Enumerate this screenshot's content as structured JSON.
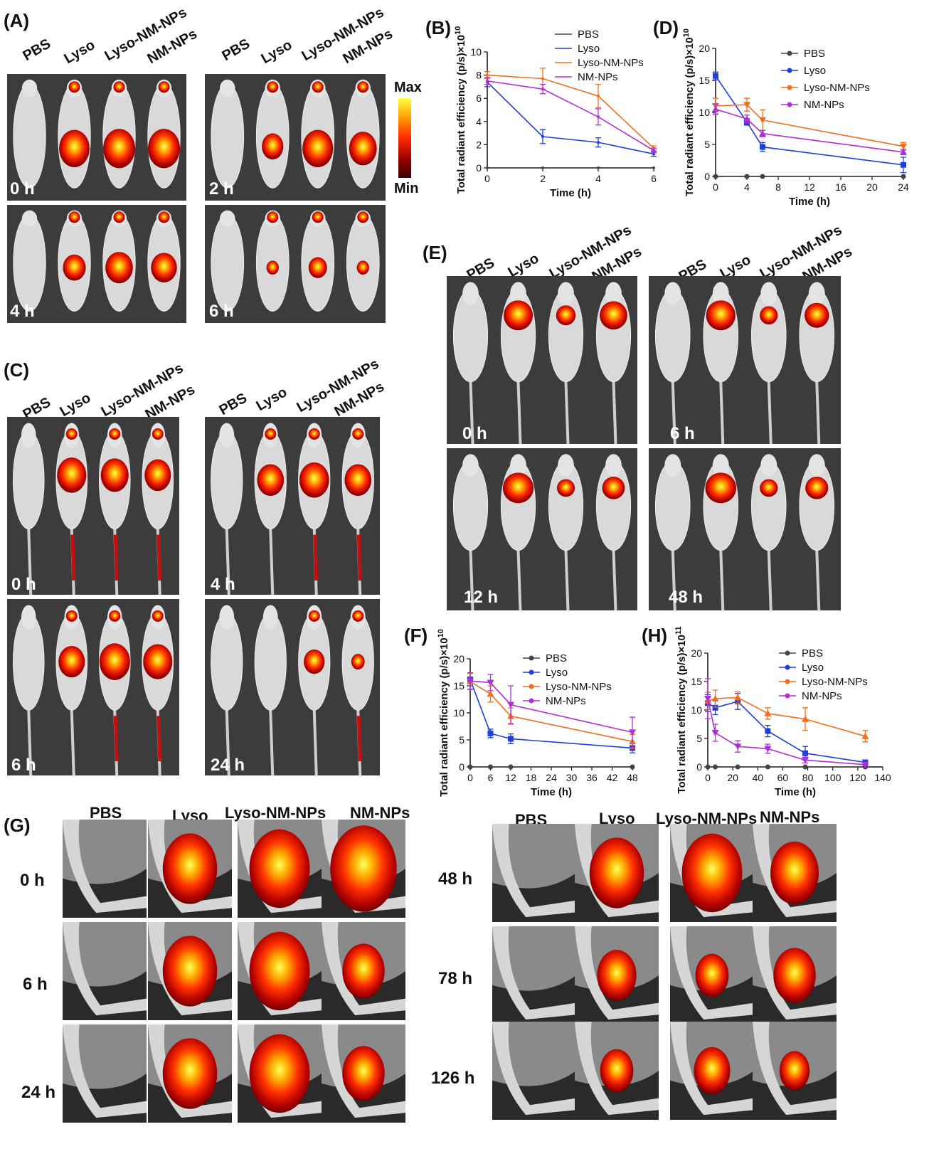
{
  "groups": [
    "PBS",
    "Lyso",
    "Lyso-NM-NPs",
    "NM-NPs"
  ],
  "panels": {
    "A": {
      "label": "(A)",
      "times": [
        "0 h",
        "2 h",
        "4 h",
        "6 h"
      ]
    },
    "C": {
      "label": "(C)",
      "times": [
        "0 h",
        "4 h",
        "6 h",
        "24 h"
      ]
    },
    "E": {
      "label": "(E)",
      "times": [
        "0 h",
        "6 h",
        "12 h",
        "48 h"
      ]
    },
    "G": {
      "label": "(G)",
      "times_left": [
        "0 h",
        "6 h",
        "24 h"
      ],
      "times_right": [
        "48 h",
        "78 h",
        "126 h"
      ]
    }
  },
  "colorbar": {
    "max": "Max",
    "min": "Min"
  },
  "colors": {
    "PBS": "#444444",
    "Lyso": "#1f3fd8",
    "Lyso-NM-NPs": "#f07020",
    "NM-NPs": "#b030d8"
  },
  "chart_data": [
    {
      "id": "B",
      "panel_label": "(B)",
      "type": "line",
      "xlabel": "Time (h)",
      "ylabel": "Total radiant efficiency (p/s)×10",
      "exponent": "10",
      "x": [
        0,
        2,
        4,
        6
      ],
      "xlim": [
        0,
        6
      ],
      "ylim": [
        0,
        10
      ],
      "xticks": [
        0,
        2,
        4,
        6
      ],
      "yticks": [
        0,
        2,
        4,
        6,
        8,
        10
      ],
      "legend": "top-right",
      "series": [
        {
          "name": "PBS",
          "values": [
            0,
            0,
            0,
            0
          ],
          "err": [
            0,
            0,
            0,
            0
          ],
          "marker": "none"
        },
        {
          "name": "Lyso",
          "values": [
            7.4,
            2.7,
            2.2,
            1.2
          ],
          "err": [
            0.4,
            0.6,
            0.4,
            0.2
          ],
          "marker": "none"
        },
        {
          "name": "Lyso-NM-NPs",
          "values": [
            8.0,
            7.7,
            6.2,
            1.7
          ],
          "err": [
            0.3,
            0.9,
            1.0,
            0.2
          ],
          "marker": "none"
        },
        {
          "name": "NM-NPs",
          "values": [
            7.5,
            6.8,
            4.4,
            1.5
          ],
          "err": [
            0.3,
            0.4,
            0.7,
            0.2
          ],
          "marker": "none"
        }
      ]
    },
    {
      "id": "D",
      "panel_label": "(D)",
      "type": "line",
      "xlabel": "Time (h)",
      "ylabel": "Total radiant efficiency (p/s)×10",
      "exponent": "10",
      "x": [
        0,
        4,
        6,
        24
      ],
      "xlim": [
        0,
        24
      ],
      "ylim": [
        0,
        20
      ],
      "xticks": [
        0,
        4,
        8,
        12,
        16,
        20,
        24
      ],
      "yticks": [
        0,
        5,
        10,
        15,
        20
      ],
      "legend": "top-right",
      "series": [
        {
          "name": "PBS",
          "values": [
            0,
            0,
            0,
            0
          ],
          "err": [
            0,
            0,
            0,
            0
          ],
          "marker": "circle"
        },
        {
          "name": "Lyso",
          "values": [
            15.7,
            8.5,
            4.6,
            1.8
          ],
          "err": [
            0.6,
            0.5,
            0.7,
            1.2
          ],
          "marker": "square"
        },
        {
          "name": "Lyso-NM-NPs",
          "values": [
            11.0,
            11.2,
            8.8,
            4.7
          ],
          "err": [
            1.2,
            1.0,
            1.6,
            0.6
          ],
          "marker": "tri-down"
        },
        {
          "name": "NM-NPs",
          "values": [
            10.5,
            9.0,
            6.7,
            3.8
          ],
          "err": [
            0.8,
            0.6,
            0.5,
            0.4
          ],
          "marker": "tri-up"
        }
      ]
    },
    {
      "id": "F",
      "panel_label": "(F)",
      "type": "line",
      "xlabel": "Time (h)",
      "ylabel": "Total radiant efficiency (p/s)×10",
      "exponent": "10",
      "x": [
        0,
        6,
        12,
        48
      ],
      "xlim": [
        0,
        48
      ],
      "ylim": [
        0,
        20
      ],
      "xticks": [
        0,
        6,
        12,
        18,
        24,
        30,
        36,
        42,
        48
      ],
      "yticks": [
        0,
        5,
        10,
        15,
        20
      ],
      "legend": "top-right",
      "series": [
        {
          "name": "PBS",
          "values": [
            0,
            0,
            0,
            0
          ],
          "err": [
            0,
            0,
            0,
            0
          ],
          "marker": "circle"
        },
        {
          "name": "Lyso",
          "values": [
            16.2,
            6.2,
            5.2,
            3.5
          ],
          "err": [
            1.2,
            0.8,
            0.9,
            0.9
          ],
          "marker": "square"
        },
        {
          "name": "Lyso-NM-NPs",
          "values": [
            15.8,
            13.5,
            9.4,
            4.7
          ],
          "err": [
            1.5,
            1.5,
            1.5,
            1.3
          ],
          "marker": "tri-up"
        },
        {
          "name": "NM-NPs",
          "values": [
            15.9,
            15.6,
            11.5,
            6.4
          ],
          "err": [
            1.5,
            1.5,
            3.5,
            2.8
          ],
          "marker": "tri-down"
        }
      ]
    },
    {
      "id": "H",
      "panel_label": "(H)",
      "type": "line",
      "xlabel": "Time (h)",
      "ylabel": "Total radiant efficiency (p/s)×10",
      "exponent": "11",
      "xlim": [
        0,
        140
      ],
      "ylim": [
        0,
        20
      ],
      "xticks": [
        0,
        20,
        40,
        60,
        80,
        100,
        120,
        140
      ],
      "yticks": [
        0,
        5,
        10,
        15,
        20
      ],
      "legend": "top-right",
      "series": [
        {
          "name": "PBS",
          "x": [
            0,
            6,
            24,
            48,
            78,
            126
          ],
          "values": [
            0,
            0,
            0,
            0,
            0,
            0
          ],
          "err": [
            0,
            0,
            0,
            0,
            0,
            0
          ],
          "marker": "circle"
        },
        {
          "name": "Lyso",
          "x": [
            0,
            6,
            24,
            48,
            78,
            126
          ],
          "values": [
            11.2,
            10.4,
            11.5,
            6.3,
            2.4,
            0.8
          ],
          "err": [
            1.5,
            1.2,
            1.4,
            1.0,
            1.2,
            0.4
          ],
          "marker": "square"
        },
        {
          "name": "Lyso-NM-NPs",
          "x": [
            0,
            6,
            24,
            48,
            78,
            126
          ],
          "values": [
            11.6,
            12.0,
            12.2,
            9.4,
            8.4,
            5.4
          ],
          "err": [
            1.5,
            1.5,
            1.0,
            1.0,
            2.0,
            1.0
          ],
          "marker": "tri-up"
        },
        {
          "name": "NM-NPs",
          "x": [
            0,
            6,
            24,
            48,
            78,
            126
          ],
          "values": [
            12.0,
            6.0,
            3.6,
            3.2,
            1.2,
            0.4
          ],
          "err": [
            3.5,
            1.5,
            1.0,
            0.8,
            0.5,
            0.2
          ],
          "marker": "tri-down"
        }
      ]
    }
  ]
}
